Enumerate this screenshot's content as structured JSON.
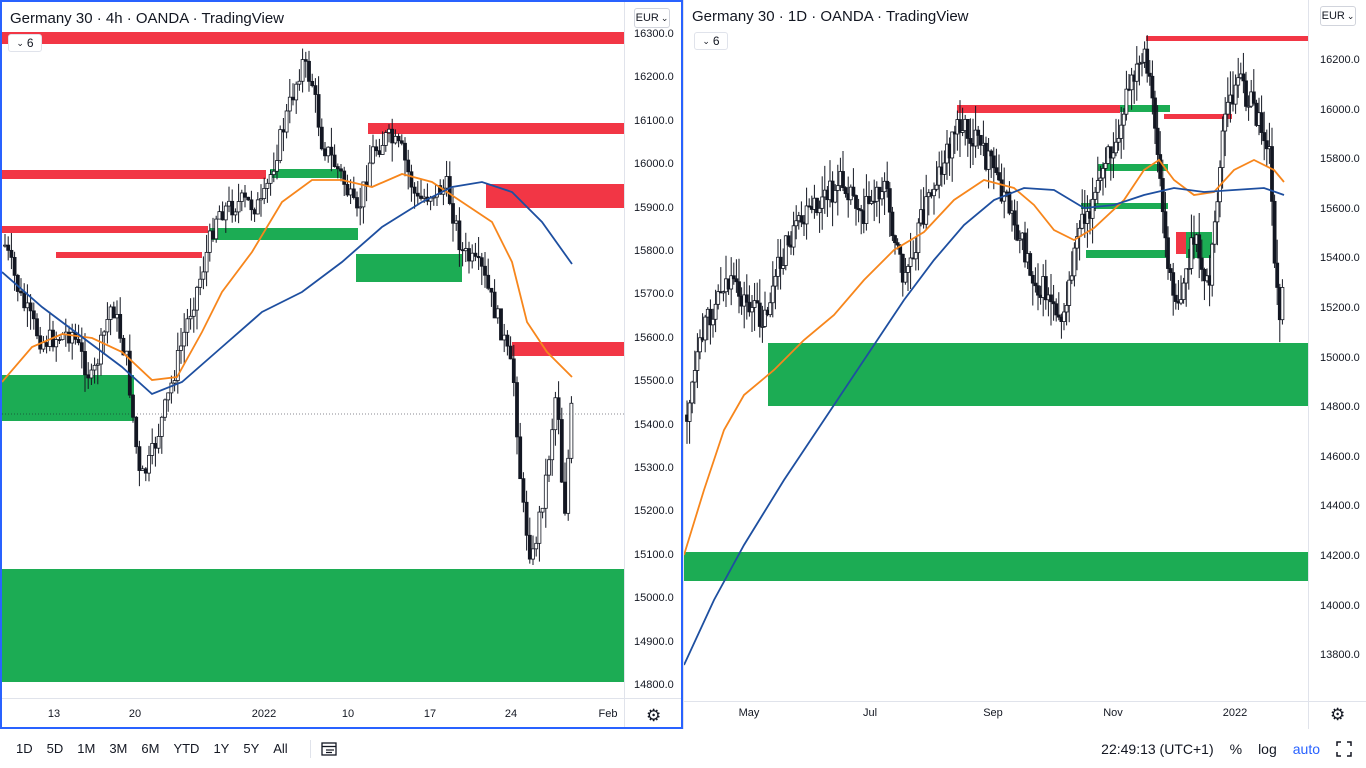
{
  "left_chart": {
    "title": "Germany 30 · 4h · OANDA · TradingView",
    "indicator_count": "6",
    "currency": "EUR",
    "price_labels": [
      "16300.0",
      "16200.0",
      "16100.0",
      "16000.0",
      "15900.0",
      "15800.0",
      "15700.0",
      "15600.0",
      "15500.0",
      "15400.0",
      "15300.0",
      "15200.0",
      "15100.0",
      "15000.0",
      "14900.0",
      "14800.0"
    ],
    "time_labels": [
      "13",
      "20",
      "2022",
      "10",
      "17",
      "24",
      "Feb"
    ]
  },
  "right_chart": {
    "title": "Germany 30 · 1D · OANDA · TradingView",
    "indicator_count": "6",
    "currency": "EUR",
    "price_labels": [
      "16200.0",
      "16000.0",
      "15800.0",
      "15600.0",
      "15400.0",
      "15200.0",
      "15000.0",
      "14800.0",
      "14600.0",
      "14400.0",
      "14200.0",
      "14000.0",
      "13800.0"
    ],
    "time_labels": [
      "May",
      "Jul",
      "Sep",
      "Nov",
      "2022"
    ]
  },
  "bottom_bar": {
    "timeframes": [
      "1D",
      "5D",
      "1M",
      "3M",
      "6M",
      "YTD",
      "1Y",
      "5Y",
      "All"
    ],
    "clock": "22:49:13 (UTC+1)",
    "percent": "%",
    "log": "log",
    "auto": "auto"
  },
  "colors": {
    "supply_zone": "#f23645",
    "demand_zone": "#089981",
    "demand_zone_bright": "#1cac54",
    "ema_fast": "#f7861c",
    "ema_slow": "#1e4fa0",
    "accent": "#2962ff"
  },
  "icons": [
    "chevron-down-icon",
    "settings-gear-icon",
    "compare-calendar-icon",
    "fullscreen-icon"
  ]
}
